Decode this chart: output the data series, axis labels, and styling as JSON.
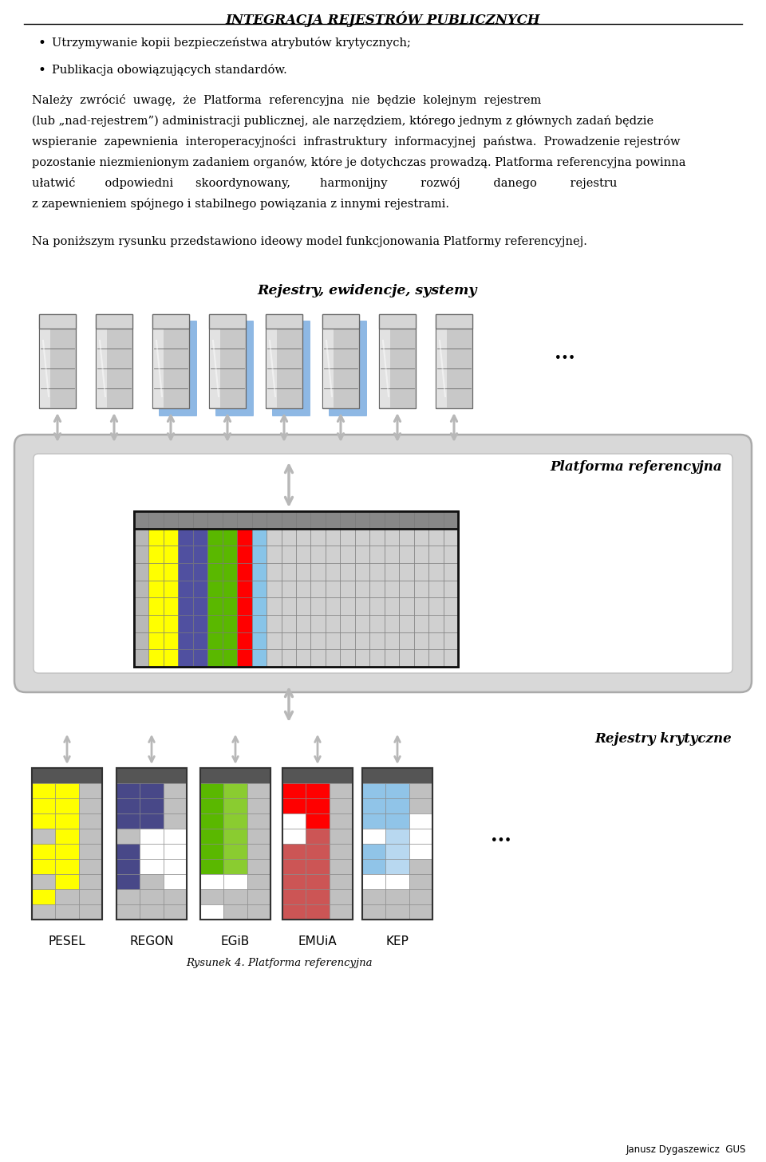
{
  "title": "INTEGRACJA REJESTRÓW PUBLICZNYCH",
  "bullet1": "Utrzymywanie kopii bezpieczeństwa atrybutów krytycznych;",
  "bullet2": "Publikacja obowiązujących standardów.",
  "para1_lines": [
    "Należy  zwrócić  uwagę,  że  Platforma  referencyjna  nie  będzie  kolejnym  rejestrem",
    "(lub „nad-rejestrem”) administracji publicznej, ale narzędziem, którego jednym z głównych zadań będzie",
    "wspieranie  zapewnienia  interoperacyjności  infrastruktury  informacyjnej  państwa.  Prowadzenie rejestrów",
    "pozostanie niezmienionym zadaniem organów, które je dotychczas prowadzą. Platforma referencyjna powinna",
    "ułatwić        odpowiedni      skoordynowany,        harmonijny         rozwój         danego         rejestru",
    "z zapewnieniem spójnego i stabilnego powiązania z innymi rejestrami."
  ],
  "para2": "Na poniższym rysunku przedstawiono ideowy model funkcjonowania Platformy referencyjnej.",
  "label_top": "Rejestry, ewidencje, systemy",
  "label_platform": "Platforma referencyjna",
  "label_critical": "Rejestry krytyczne",
  "dots": "...",
  "bottom_labels": [
    "PESEL",
    "REGON",
    "EGiB",
    "EMUiA",
    "KEP"
  ],
  "caption": "Rysunek 4. Platforma referencyjna",
  "author": "Janusz Dygaszewicz  GUS",
  "bg_color": "#ffffff",
  "icon_shadow_pattern": [
    false,
    false,
    true,
    true,
    true,
    true,
    false,
    false
  ],
  "grid_col_colors": [
    "#ffff00",
    "#ffff00",
    "#5858a0",
    "#5858a0",
    "#5ab800",
    "#5ab800",
    "#ff0000",
    "#87c4e8",
    "#c8c8c8",
    "#c8c8c8",
    "#c8c8c8",
    "#c8c8c8",
    "#c8c8c8",
    "#c8c8c8",
    "#c8c8c8",
    "#c8c8c8",
    "#c8c8c8",
    "#c8c8c8",
    "#c8c8c8",
    "#c8c8c8",
    "#c8c8c8",
    "#c8c8c8"
  ],
  "grid_col0_color": "#c0c0c0",
  "plat_outer_color": "#d8d8d8",
  "plat_outer_border": "#aaaaaa",
  "plat_inner_color": "#ffffff",
  "arrow_color": "#c0c0c0"
}
